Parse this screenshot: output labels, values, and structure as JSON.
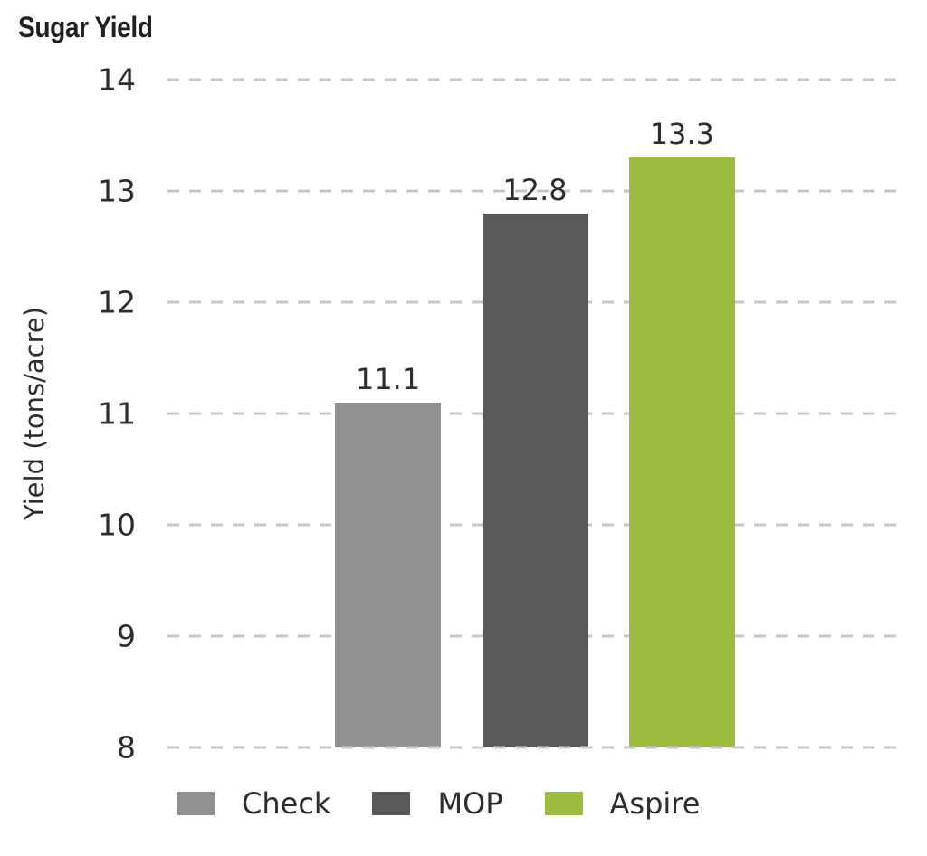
{
  "title": "Sugar Yield",
  "chart_data": {
    "type": "bar",
    "title": "Sugar Yield",
    "xlabel": "",
    "ylabel": "Yield (tons/acre)",
    "categories": [
      "Check",
      "MOP",
      "Aspire"
    ],
    "values": [
      11.1,
      12.8,
      13.3
    ],
    "data_labels": [
      "11.1",
      "12.8",
      "13.3"
    ],
    "bar_colors": [
      "#8f9193",
      "#58595b",
      "#9dbb40"
    ],
    "ylim": [
      8,
      14
    ],
    "yticks": [
      14,
      13,
      12,
      11,
      10,
      9,
      8
    ],
    "grid": "horizontal-dashed",
    "legend_position": "bottom"
  },
  "legend": {
    "items": [
      {
        "label": "Check",
        "color": "#8f9193"
      },
      {
        "label": "MOP",
        "color": "#58595b"
      },
      {
        "label": "Aspire",
        "color": "#9dbb40"
      }
    ]
  },
  "colors": {
    "grid": "#c7c7c7",
    "text": "#2d2d2d",
    "title_text": "#231f20",
    "background": "#ffffff"
  }
}
